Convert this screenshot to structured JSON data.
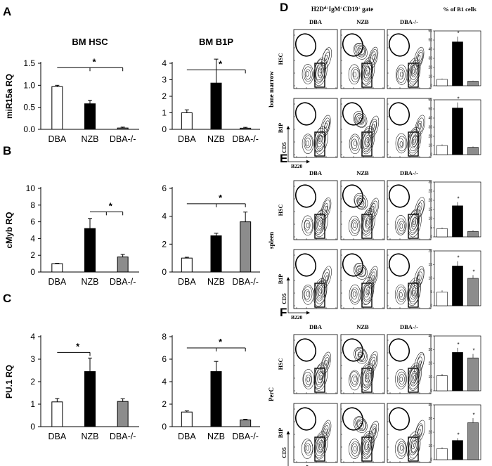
{
  "left_panels": [
    {
      "letter": "A",
      "ylabel": "miR15a RQ",
      "charts": [
        {
          "title": "BM HSC",
          "ylim": [
            0,
            1.5
          ],
          "ticks": [
            "0.0",
            "0.5",
            "1.0",
            "1.5"
          ],
          "tickvals": [
            0,
            0.5,
            1.0,
            1.5
          ],
          "categories": [
            "DBA",
            "NZB",
            "DBA-/-"
          ],
          "values": [
            0.97,
            0.58,
            0.03
          ],
          "errors": [
            0.03,
            0.08,
            0.02
          ],
          "sig": {
            "from": 0,
            "to": 2,
            "mid": 1,
            "y": 1.4,
            "label": "*"
          }
        },
        {
          "title": "BM B1P",
          "ylim": [
            0,
            4
          ],
          "ticks": [
            "0",
            "1",
            "2",
            "3",
            "4"
          ],
          "tickvals": [
            0,
            1,
            2,
            3,
            4
          ],
          "categories": [
            "DBA",
            "NZB",
            "DBA-/-"
          ],
          "values": [
            1.0,
            2.8,
            0.07
          ],
          "errors": [
            0.18,
            1.45,
            0.05
          ],
          "sig": {
            "from": 0,
            "to": 2,
            "mid": 1,
            "y": 3.6,
            "label": "*"
          }
        }
      ]
    },
    {
      "letter": "B",
      "ylabel": "cMyb RQ",
      "charts": [
        {
          "title": "",
          "ylim": [
            0,
            10
          ],
          "ticks": [
            "0",
            "2",
            "4",
            "6",
            "8",
            "10"
          ],
          "tickvals": [
            0,
            2,
            4,
            6,
            8,
            10
          ],
          "categories": [
            "DBA",
            "NZB",
            "DBA-/-"
          ],
          "values": [
            1.0,
            5.2,
            1.8
          ],
          "errors": [
            0.05,
            1.2,
            0.3
          ],
          "sig": {
            "from": 1,
            "to": 2,
            "mid": 1.5,
            "y": 7.2,
            "label": "*"
          }
        },
        {
          "title": "",
          "ylim": [
            0,
            6
          ],
          "ticks": [
            "0",
            "2",
            "4",
            "6"
          ],
          "tickvals": [
            0,
            2,
            4,
            6
          ],
          "categories": [
            "DBA",
            "NZB",
            "DBA-/-"
          ],
          "values": [
            1.0,
            2.6,
            3.6
          ],
          "errors": [
            0.06,
            0.18,
            0.7
          ],
          "sig": {
            "from": 0,
            "to": 2,
            "mid": 1,
            "y": 4.9,
            "label": "*"
          }
        }
      ]
    },
    {
      "letter": "C",
      "ylabel": "PU.1 RQ",
      "charts": [
        {
          "title": "",
          "ylim": [
            0,
            4
          ],
          "ticks": [
            "0",
            "1",
            "2",
            "3",
            "4"
          ],
          "tickvals": [
            0,
            1,
            2,
            3,
            4
          ],
          "categories": [
            "DBA",
            "NZB",
            "DBA-/-"
          ],
          "values": [
            1.1,
            2.45,
            1.12
          ],
          "errors": [
            0.15,
            0.6,
            0.12
          ],
          "sig": {
            "from": 0,
            "to": 1,
            "mid": 1,
            "y": 3.3,
            "label": "*"
          }
        },
        {
          "title": "",
          "ylim": [
            0,
            8
          ],
          "ticks": [
            "0",
            "2",
            "4",
            "6",
            "8"
          ],
          "tickvals": [
            0,
            2,
            4,
            6,
            8
          ],
          "categories": [
            "DBA",
            "NZB",
            "DBA-/-"
          ],
          "values": [
            1.3,
            4.9,
            0.6
          ],
          "errors": [
            0.1,
            0.9,
            0.05
          ],
          "sig": {
            "from": 0,
            "to": 2,
            "mid": 1,
            "y": 7.0,
            "label": "*"
          }
        }
      ]
    }
  ],
  "flow": {
    "header_gate": "H2D",
    "header_gate_sup": "d+",
    "header_gate_rest": "IgM",
    "header_gate_sup2": "+",
    "header_gate_rest2": "CD19",
    "header_gate_sup3": "+",
    "header_gate_tail": " gate",
    "header_pct": "% of B1 cells",
    "columns": [
      "DBA",
      "NZB",
      "DBA-/-"
    ],
    "axis_y": "CD5",
    "axis_x": "B220",
    "panels": [
      {
        "letter": "D",
        "tissue": "bone marrow",
        "rows": [
          {
            "label": "HSC",
            "bars": [
              7,
              48,
              5
            ],
            "ylim": [
              0,
              60
            ],
            "ticks": [
              "0",
              "10",
              "20",
              "30",
              "40",
              "50",
              "60"
            ],
            "tickvals": [
              0,
              10,
              20,
              30,
              40,
              50,
              60
            ],
            "stars": [
              1
            ]
          },
          {
            "label": "B1P",
            "bars": [
              10,
              51,
              8
            ],
            "ylim": [
              0,
              60
            ],
            "ticks": [
              "0",
              "10",
              "20",
              "30",
              "40",
              "50",
              "60"
            ],
            "tickvals": [
              0,
              10,
              20,
              30,
              40,
              50,
              60
            ],
            "stars": [
              1
            ]
          }
        ]
      },
      {
        "letter": "E",
        "tissue": "spleen",
        "rows": [
          {
            "label": "HSC",
            "bars": [
              4.5,
              17,
              3
            ],
            "ylim": [
              0,
              30
            ],
            "ticks": [
              "0",
              "5",
              "10",
              "15",
              "20",
              "25",
              "30"
            ],
            "tickvals": [
              0,
              5,
              10,
              15,
              20,
              25,
              30
            ],
            "stars": [
              1
            ]
          },
          {
            "label": "B1P",
            "bars": [
              5,
              14.5,
              10
            ],
            "ylim": [
              0,
              20
            ],
            "ticks": [
              "0",
              "5",
              "10",
              "15",
              "20"
            ],
            "tickvals": [
              0,
              5,
              10,
              15,
              20
            ],
            "stars": [
              1,
              2
            ]
          }
        ]
      },
      {
        "letter": "F",
        "tissue": "PerC",
        "rows": [
          {
            "label": "HSC",
            "bars": [
              11,
              28,
              24
            ],
            "ylim": [
              0,
              40
            ],
            "ticks": [
              "0",
              "10",
              "20",
              "30",
              "40"
            ],
            "tickvals": [
              0,
              10,
              20,
              30,
              40
            ],
            "stars": [
              1,
              2
            ]
          },
          {
            "label": "B1P",
            "bars": [
              8,
              14,
              27
            ],
            "ylim": [
              0,
              40
            ],
            "ticks": [
              "0",
              "10",
              "20",
              "30",
              "40"
            ],
            "tickvals": [
              0,
              10,
              20,
              30,
              40
            ],
            "stars": [
              1,
              2
            ]
          }
        ]
      }
    ]
  },
  "chart_data": [
    {
      "type": "bar",
      "panel": "A",
      "title": "BM HSC",
      "ylabel": "miR15a RQ",
      "categories": [
        "DBA",
        "NZB",
        "DBA-/-"
      ],
      "values": [
        0.97,
        0.58,
        0.03
      ],
      "ylim": [
        0,
        1.5
      ]
    },
    {
      "type": "bar",
      "panel": "A",
      "title": "BM B1P",
      "categories": [
        "DBA",
        "NZB",
        "DBA-/-"
      ],
      "values": [
        1.0,
        2.8,
        0.07
      ],
      "ylim": [
        0,
        4
      ]
    },
    {
      "type": "bar",
      "panel": "B",
      "ylabel": "cMyb RQ",
      "categories": [
        "DBA",
        "NZB",
        "DBA-/-"
      ],
      "values": [
        1.0,
        5.2,
        1.8
      ],
      "ylim": [
        0,
        10
      ]
    },
    {
      "type": "bar",
      "panel": "B",
      "categories": [
        "DBA",
        "NZB",
        "DBA-/-"
      ],
      "values": [
        1.0,
        2.6,
        3.6
      ],
      "ylim": [
        0,
        6
      ]
    },
    {
      "type": "bar",
      "panel": "C",
      "ylabel": "PU.1 RQ",
      "categories": [
        "DBA",
        "NZB",
        "DBA-/-"
      ],
      "values": [
        1.1,
        2.45,
        1.12
      ],
      "ylim": [
        0,
        4
      ]
    },
    {
      "type": "bar",
      "panel": "C",
      "categories": [
        "DBA",
        "NZB",
        "DBA-/-"
      ],
      "values": [
        1.3,
        4.9,
        0.6
      ],
      "ylim": [
        0,
        8
      ]
    }
  ],
  "colors": {
    "dba": "#ffffff",
    "nzb": "#000000",
    "ko": "#8c8c8c"
  }
}
